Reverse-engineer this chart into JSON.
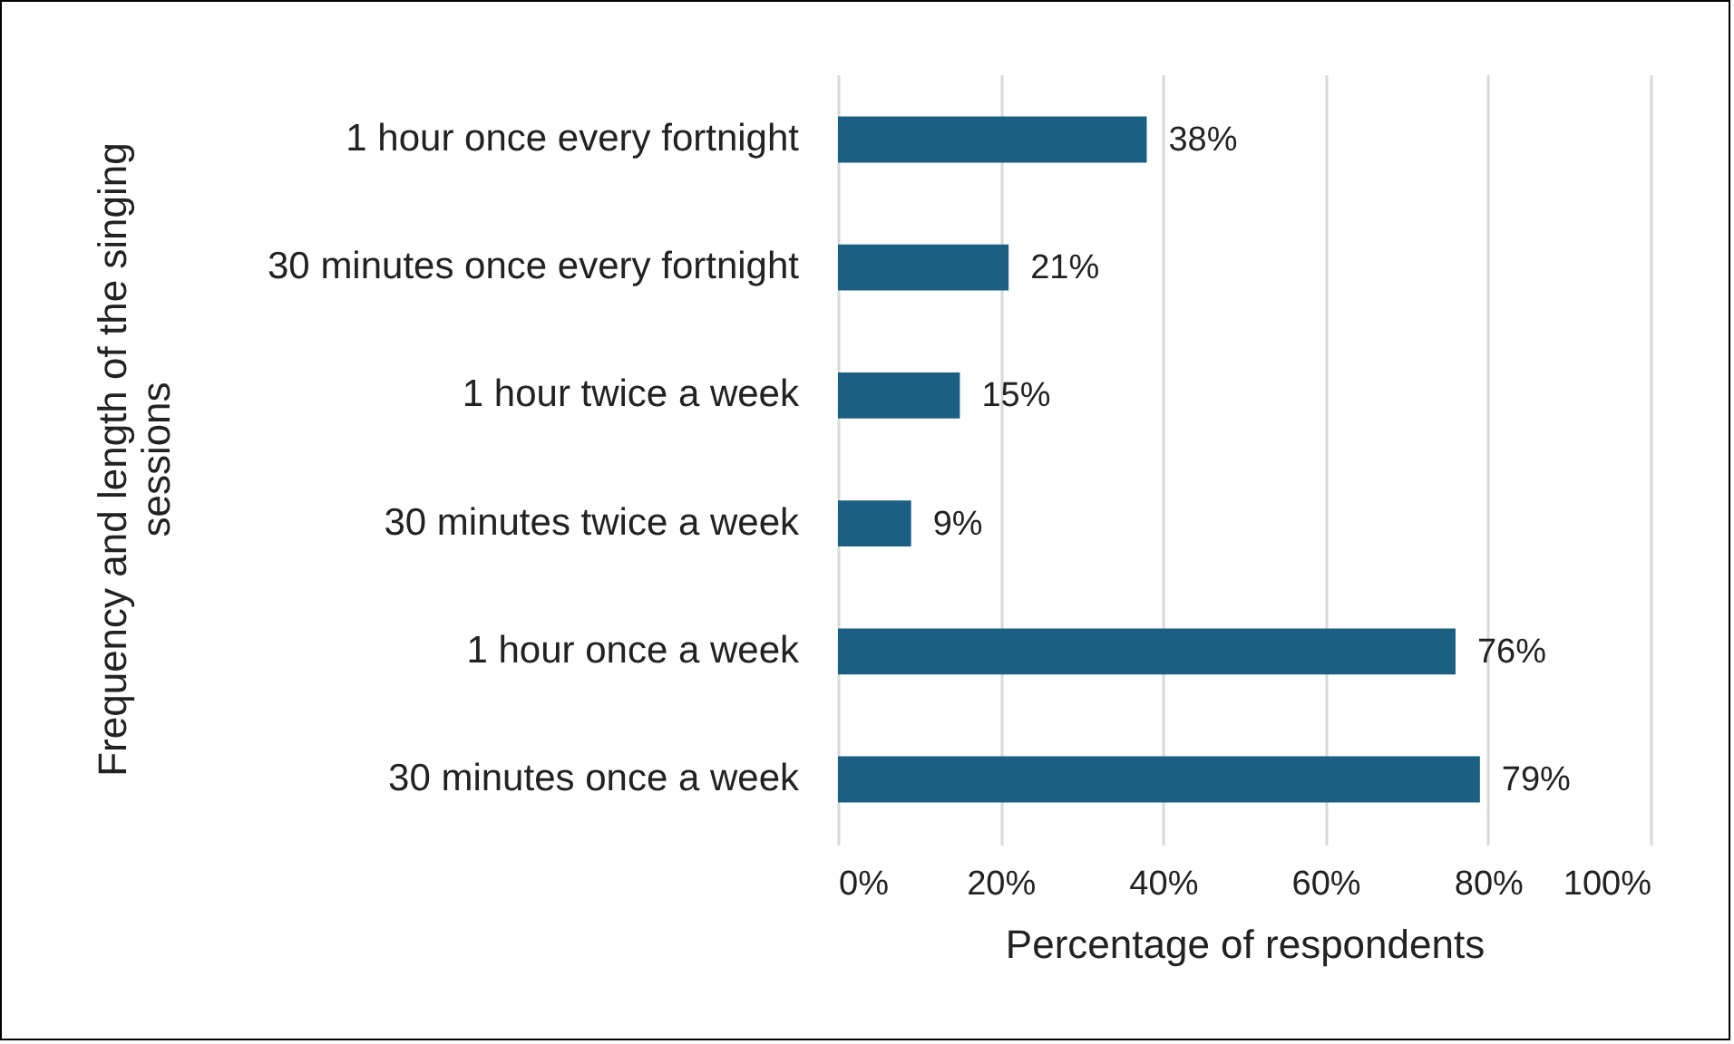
{
  "chart_data": {
    "type": "bar",
    "orientation": "horizontal",
    "xlabel": "Percentage of respondents",
    "ylabel": "Frequency and length of the singing sessions",
    "categories": [
      "1 hour once every fortnight",
      "30 minutes once every fortnight",
      "1 hour twice a week",
      "30 minutes twice a week",
      "1 hour once a week",
      "30 minutes once a week"
    ],
    "values": [
      38,
      21,
      15,
      9,
      76,
      79
    ],
    "value_labels": [
      "38%",
      "21%",
      "15%",
      "9%",
      "76%",
      "79%"
    ],
    "color": "#1b6082",
    "xlim": [
      0,
      100
    ],
    "xticks": [
      {
        "value": 0,
        "label": "0%"
      },
      {
        "value": 20,
        "label": "20%"
      },
      {
        "value": 40,
        "label": "40%"
      },
      {
        "value": 60,
        "label": "60%"
      },
      {
        "value": 80,
        "label": "80%"
      },
      {
        "value": 100,
        "label": "100%"
      }
    ],
    "grid": "x"
  }
}
